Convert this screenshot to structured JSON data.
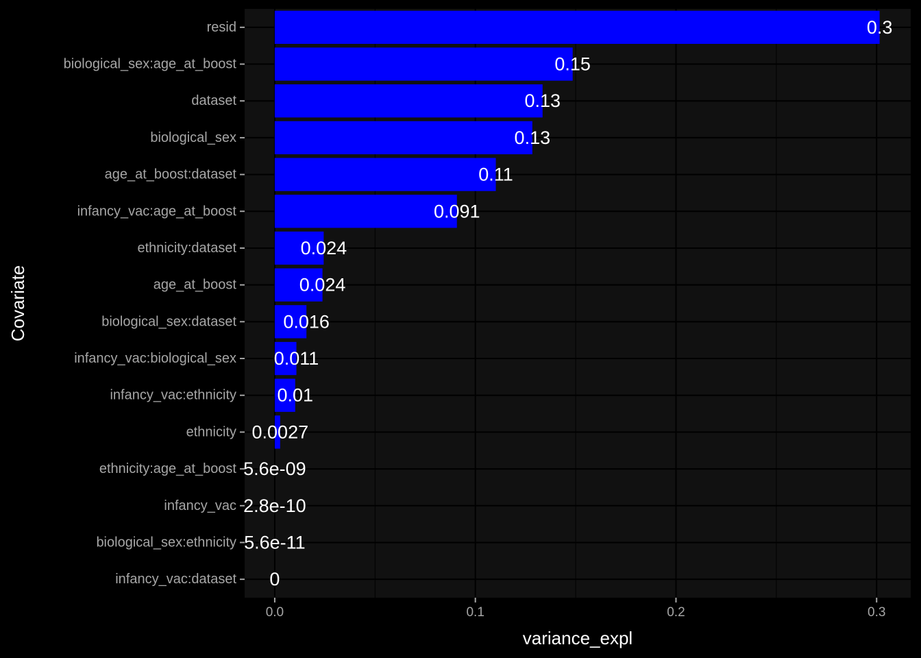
{
  "chart_data": {
    "type": "bar",
    "orientation": "horizontal",
    "categories": [
      "resid",
      "biological_sex:age_at_boost",
      "dataset",
      "biological_sex",
      "age_at_boost:dataset",
      "infancy_vac:age_at_boost",
      "ethnicity:dataset",
      "age_at_boost",
      "biological_sex:dataset",
      "infancy_vac:biological_sex",
      "infancy_vac:ethnicity",
      "ethnicity",
      "ethnicity:age_at_boost",
      "infancy_vac",
      "biological_sex:ethnicity",
      "infancy_vac:dataset"
    ],
    "values": [
      0.3015,
      0.1485,
      0.1335,
      0.1284,
      0.1102,
      0.0908,
      0.0244,
      0.0238,
      0.0158,
      0.0108,
      0.0102,
      0.0027,
      5.6e-09,
      2.8e-10,
      5.6e-11,
      0
    ],
    "labels": [
      "0.3",
      "0.15",
      "0.13",
      "0.13",
      "0.11",
      "0.091",
      "0.024",
      "0.024",
      "0.016",
      "0.011",
      "0.01",
      "0.0027",
      "5.6e-09",
      "2.8e-10",
      "5.6e-11",
      "0"
    ],
    "xlabel": "variance_expl",
    "ylabel": "Covariate",
    "xlim": [
      -0.015,
      0.317
    ],
    "xticks": [
      0.0,
      0.1,
      0.2,
      0.3
    ],
    "xtick_labels": [
      "0.0",
      "0.1",
      "0.2",
      "0.3"
    ],
    "grid": true,
    "colors": {
      "bar": "#0000ff",
      "panel": "#111111",
      "background": "#000000",
      "grid": "#000000",
      "text": "#ffffff",
      "tick_text": "#a6a6a6"
    }
  }
}
